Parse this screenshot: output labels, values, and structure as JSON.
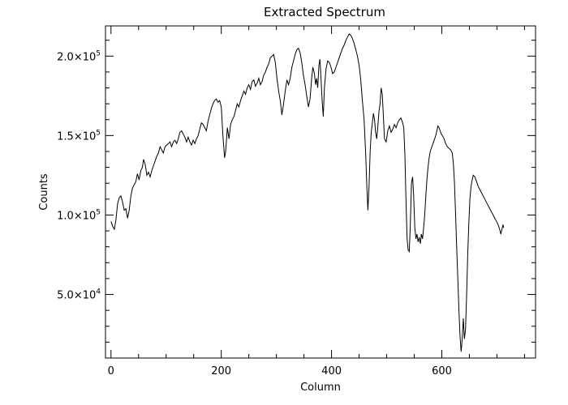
{
  "chart_data": {
    "type": "line",
    "title": "Extracted Spectrum",
    "xlabel": "Column",
    "ylabel": "Counts",
    "xlim": [
      -10,
      770
    ],
    "ylim": [
      10000,
      219000
    ],
    "x_ticks": [
      {
        "value": 0,
        "label": "0"
      },
      {
        "value": 200,
        "label": "200"
      },
      {
        "value": 400,
        "label": "400"
      },
      {
        "value": 600,
        "label": "600"
      }
    ],
    "y_ticks": [
      {
        "value": 50000,
        "mantissa": "5.0×10",
        "exponent": "4"
      },
      {
        "value": 100000,
        "mantissa": "1.0×10",
        "exponent": "5"
      },
      {
        "value": 150000,
        "mantissa": "1.5×10",
        "exponent": "5"
      },
      {
        "value": 200000,
        "mantissa": "2.0×10",
        "exponent": "5"
      }
    ],
    "x_minor_step": 50,
    "y_minor_step": 10000,
    "grid": false,
    "series": [
      {
        "color": "#000000",
        "points": [
          [
            0,
            96000
          ],
          [
            3,
            93000
          ],
          [
            6,
            91000
          ],
          [
            9,
            97000
          ],
          [
            12,
            107000
          ],
          [
            15,
            111000
          ],
          [
            18,
            112000
          ],
          [
            21,
            108000
          ],
          [
            24,
            103000
          ],
          [
            27,
            104000
          ],
          [
            30,
            98000
          ],
          [
            33,
            103000
          ],
          [
            36,
            112000
          ],
          [
            39,
            117000
          ],
          [
            42,
            119000
          ],
          [
            45,
            121000
          ],
          [
            48,
            126000
          ],
          [
            51,
            122000
          ],
          [
            54,
            128000
          ],
          [
            57,
            130000
          ],
          [
            59,
            135000
          ],
          [
            62,
            132000
          ],
          [
            65,
            125000
          ],
          [
            68,
            127000
          ],
          [
            71,
            124000
          ],
          [
            74,
            128000
          ],
          [
            77,
            131000
          ],
          [
            80,
            134000
          ],
          [
            83,
            137000
          ],
          [
            86,
            139000
          ],
          [
            89,
            143000
          ],
          [
            92,
            141000
          ],
          [
            95,
            139000
          ],
          [
            98,
            143000
          ],
          [
            101,
            144000
          ],
          [
            104,
            145000
          ],
          [
            107,
            146000
          ],
          [
            110,
            143000
          ],
          [
            113,
            146000
          ],
          [
            116,
            147000
          ],
          [
            119,
            145000
          ],
          [
            122,
            148000
          ],
          [
            125,
            152000
          ],
          [
            128,
            153000
          ],
          [
            131,
            151000
          ],
          [
            134,
            149000
          ],
          [
            137,
            146000
          ],
          [
            140,
            149000
          ],
          [
            143,
            146000
          ],
          [
            146,
            144000
          ],
          [
            149,
            147000
          ],
          [
            152,
            145000
          ],
          [
            155,
            148000
          ],
          [
            158,
            150000
          ],
          [
            161,
            154000
          ],
          [
            164,
            158000
          ],
          [
            167,
            157000
          ],
          [
            170,
            155000
          ],
          [
            173,
            153000
          ],
          [
            176,
            159000
          ],
          [
            179,
            163000
          ],
          [
            182,
            167000
          ],
          [
            185,
            170000
          ],
          [
            188,
            172000
          ],
          [
            191,
            173000
          ],
          [
            194,
            171000
          ],
          [
            197,
            172000
          ],
          [
            200,
            168000
          ],
          [
            203,
            150000
          ],
          [
            206,
            136000
          ],
          [
            208,
            140000
          ],
          [
            211,
            155000
          ],
          [
            214,
            148000
          ],
          [
            217,
            157000
          ],
          [
            220,
            160000
          ],
          [
            223,
            162000
          ],
          [
            226,
            166000
          ],
          [
            229,
            170000
          ],
          [
            232,
            168000
          ],
          [
            235,
            172000
          ],
          [
            238,
            175000
          ],
          [
            241,
            178000
          ],
          [
            244,
            176000
          ],
          [
            247,
            180000
          ],
          [
            250,
            182000
          ],
          [
            253,
            179000
          ],
          [
            256,
            184000
          ],
          [
            259,
            185000
          ],
          [
            262,
            181000
          ],
          [
            265,
            183000
          ],
          [
            268,
            186000
          ],
          [
            271,
            182000
          ],
          [
            274,
            184000
          ],
          [
            277,
            188000
          ],
          [
            280,
            190000
          ],
          [
            283,
            193000
          ],
          [
            286,
            195000
          ],
          [
            289,
            199000
          ],
          [
            292,
            200000
          ],
          [
            295,
            201000
          ],
          [
            298,
            196000
          ],
          [
            301,
            186000
          ],
          [
            304,
            178000
          ],
          [
            307,
            172000
          ],
          [
            310,
            163000
          ],
          [
            313,
            170000
          ],
          [
            316,
            178000
          ],
          [
            319,
            185000
          ],
          [
            322,
            182000
          ],
          [
            325,
            186000
          ],
          [
            328,
            193000
          ],
          [
            331,
            197000
          ],
          [
            334,
            201000
          ],
          [
            337,
            204000
          ],
          [
            340,
            205000
          ],
          [
            343,
            202000
          ],
          [
            346,
            196000
          ],
          [
            349,
            188000
          ],
          [
            352,
            182000
          ],
          [
            355,
            175000
          ],
          [
            358,
            168000
          ],
          [
            361,
            173000
          ],
          [
            364,
            186000
          ],
          [
            366,
            193000
          ],
          [
            369,
            189000
          ],
          [
            371,
            182000
          ],
          [
            373,
            186000
          ],
          [
            375,
            180000
          ],
          [
            377,
            194000
          ],
          [
            379,
            198000
          ],
          [
            381,
            185000
          ],
          [
            383,
            172000
          ],
          [
            385,
            162000
          ],
          [
            387,
            180000
          ],
          [
            390,
            192000
          ],
          [
            393,
            197000
          ],
          [
            396,
            196000
          ],
          [
            399,
            193000
          ],
          [
            402,
            189000
          ],
          [
            405,
            190000
          ],
          [
            408,
            193000
          ],
          [
            411,
            196000
          ],
          [
            414,
            199000
          ],
          [
            417,
            202000
          ],
          [
            420,
            205000
          ],
          [
            423,
            207000
          ],
          [
            426,
            210000
          ],
          [
            429,
            212000
          ],
          [
            432,
            214000
          ],
          [
            435,
            213000
          ],
          [
            438,
            211000
          ],
          [
            441,
            208000
          ],
          [
            444,
            204000
          ],
          [
            447,
            200000
          ],
          [
            450,
            194000
          ],
          [
            453,
            185000
          ],
          [
            456,
            172000
          ],
          [
            459,
            160000
          ],
          [
            462,
            138000
          ],
          [
            464,
            118000
          ],
          [
            466,
            103000
          ],
          [
            468,
            118000
          ],
          [
            470,
            140000
          ],
          [
            472,
            152000
          ],
          [
            474,
            158000
          ],
          [
            476,
            164000
          ],
          [
            478,
            160000
          ],
          [
            480,
            152000
          ],
          [
            482,
            148000
          ],
          [
            484,
            156000
          ],
          [
            486,
            165000
          ],
          [
            488,
            170000
          ],
          [
            490,
            180000
          ],
          [
            492,
            176000
          ],
          [
            494,
            162000
          ],
          [
            496,
            148000
          ],
          [
            499,
            146000
          ],
          [
            502,
            153000
          ],
          [
            505,
            156000
          ],
          [
            508,
            152000
          ],
          [
            511,
            154000
          ],
          [
            514,
            157000
          ],
          [
            517,
            155000
          ],
          [
            520,
            158000
          ],
          [
            523,
            160000
          ],
          [
            526,
            161000
          ],
          [
            529,
            158000
          ],
          [
            531,
            155000
          ],
          [
            533,
            138000
          ],
          [
            535,
            110000
          ],
          [
            537,
            85000
          ],
          [
            539,
            78000
          ],
          [
            541,
            77000
          ],
          [
            543,
            96000
          ],
          [
            545,
            120000
          ],
          [
            547,
            124000
          ],
          [
            549,
            112000
          ],
          [
            551,
            92000
          ],
          [
            553,
            85000
          ],
          [
            555,
            88000
          ],
          [
            557,
            83000
          ],
          [
            559,
            86000
          ],
          [
            561,
            82000
          ],
          [
            563,
            88000
          ],
          [
            565,
            85000
          ],
          [
            567,
            92000
          ],
          [
            569,
            100000
          ],
          [
            571,
            112000
          ],
          [
            573,
            122000
          ],
          [
            575,
            130000
          ],
          [
            577,
            136000
          ],
          [
            579,
            140000
          ],
          [
            581,
            142000
          ],
          [
            583,
            144000
          ],
          [
            585,
            146000
          ],
          [
            587,
            148000
          ],
          [
            589,
            150000
          ],
          [
            591,
            153000
          ],
          [
            593,
            156000
          ],
          [
            595,
            155000
          ],
          [
            597,
            153000
          ],
          [
            599,
            151000
          ],
          [
            601,
            150000
          ],
          [
            604,
            148000
          ],
          [
            607,
            145000
          ],
          [
            610,
            143000
          ],
          [
            613,
            142000
          ],
          [
            616,
            141000
          ],
          [
            619,
            139000
          ],
          [
            621,
            132000
          ],
          [
            623,
            120000
          ],
          [
            625,
            100000
          ],
          [
            627,
            80000
          ],
          [
            629,
            60000
          ],
          [
            631,
            40000
          ],
          [
            633,
            24000
          ],
          [
            635,
            14000
          ],
          [
            637,
            22000
          ],
          [
            639,
            35000
          ],
          [
            641,
            22000
          ],
          [
            643,
            28000
          ],
          [
            645,
            50000
          ],
          [
            647,
            75000
          ],
          [
            649,
            95000
          ],
          [
            651,
            110000
          ],
          [
            653,
            118000
          ],
          [
            655,
            122000
          ],
          [
            657,
            125000
          ],
          [
            660,
            124000
          ],
          [
            663,
            121000
          ],
          [
            666,
            118000
          ],
          [
            669,
            116000
          ],
          [
            672,
            114000
          ],
          [
            675,
            112000
          ],
          [
            678,
            110000
          ],
          [
            681,
            108000
          ],
          [
            684,
            106000
          ],
          [
            687,
            104000
          ],
          [
            690,
            102000
          ],
          [
            693,
            100000
          ],
          [
            696,
            98000
          ],
          [
            699,
            96000
          ],
          [
            702,
            94000
          ],
          [
            705,
            91000
          ],
          [
            707,
            88000
          ],
          [
            709,
            91000
          ],
          [
            711,
            94000
          ],
          [
            712,
            92000
          ]
        ]
      }
    ]
  }
}
